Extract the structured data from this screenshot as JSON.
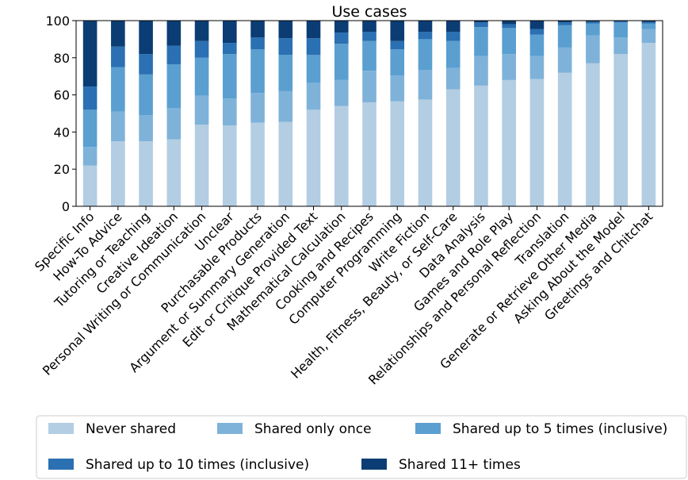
{
  "chart_data": {
    "type": "bar",
    "stacked": true,
    "title": "Use cases",
    "xlabel": "",
    "ylabel": "",
    "ylim": [
      0,
      100
    ],
    "yticks": [
      0,
      20,
      40,
      60,
      80,
      100
    ],
    "legend_position": "bottom",
    "categories": [
      "Specific Info",
      "How-To Advice",
      "Tutoring or Teaching",
      "Creative Ideation",
      "Personal Writing or Communication",
      "Unclear",
      "Purchasable Products",
      "Argument or Summary Generation",
      "Edit or Critique Provided Text",
      "Mathematical Calculation",
      "Cooking and Recipes",
      "Computer Programming",
      "Write Fiction",
      "Health, Fitness, Beauty, or Self-Care",
      "Data Analysis",
      "Games and Role Play",
      "Relationships and Personal Reflection",
      "Translation",
      "Generate or Retrieve Other Media",
      "Asking About the Model",
      "Greetings and Chitchat"
    ],
    "series": [
      {
        "name": "Never shared",
        "color": "#b3cde3",
        "values": [
          22,
          35,
          35,
          36,
          44,
          43.5,
          45,
          45.5,
          52,
          54,
          56,
          56.5,
          57.5,
          63,
          65,
          68,
          68.5,
          72,
          77,
          82,
          88
        ]
      },
      {
        "name": "Shared only once",
        "color": "#7fb2d9",
        "values": [
          10,
          16,
          14,
          17,
          15.5,
          14.5,
          16,
          16.5,
          14.5,
          14,
          17,
          14,
          16,
          11.5,
          16,
          14,
          12.5,
          13.5,
          15,
          9,
          7.5
        ]
      },
      {
        "name": "Shared up to 5 times (inclusive)",
        "color": "#5a9fd0",
        "values": [
          20,
          24,
          22,
          23.5,
          20.5,
          24,
          23.5,
          19.5,
          15,
          19.5,
          16,
          14,
          16.5,
          14.5,
          15.5,
          14,
          11.5,
          12,
          6.5,
          8,
          3
        ]
      },
      {
        "name": "Shared up to 10 times (inclusive)",
        "color": "#2a70b2",
        "values": [
          12.5,
          11,
          11,
          10,
          9,
          6,
          6.5,
          9,
          9,
          6,
          5,
          4.5,
          4,
          5,
          2.5,
          2,
          3,
          1.5,
          0.8,
          0.6,
          0.7
        ]
      },
      {
        "name": "Shared 11+ times",
        "color": "#0b3d74",
        "values": [
          35.5,
          14,
          18,
          13.5,
          11,
          12,
          9,
          9.5,
          9.5,
          6.5,
          6,
          11,
          6,
          6,
          1,
          2,
          4.5,
          1,
          0.7,
          0.4,
          0.8
        ]
      }
    ]
  }
}
